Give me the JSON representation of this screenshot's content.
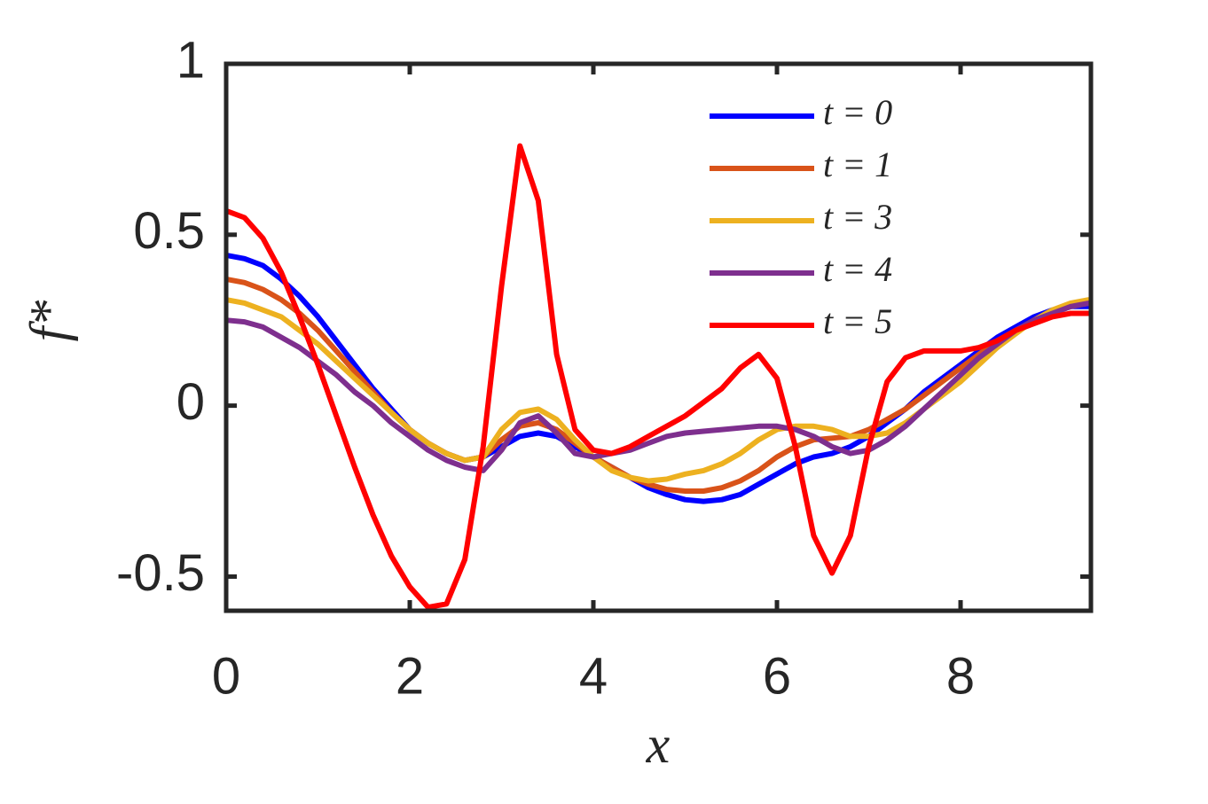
{
  "chart_data": {
    "type": "line",
    "xlabel": "x",
    "ylabel": "f*",
    "x": [
      0,
      0.2,
      0.4,
      0.6,
      0.8,
      1.0,
      1.2,
      1.4,
      1.6,
      1.8,
      2.0,
      2.2,
      2.4,
      2.6,
      2.8,
      3.0,
      3.2,
      3.4,
      3.6,
      3.8,
      4.0,
      4.2,
      4.4,
      4.6,
      4.8,
      5.0,
      5.2,
      5.4,
      5.6,
      5.8,
      6.0,
      6.2,
      6.4,
      6.6,
      6.8,
      7.0,
      7.2,
      7.4,
      7.6,
      7.8,
      8.0,
      8.2,
      8.4,
      8.6,
      8.8,
      9.0,
      9.2,
      9.4
    ],
    "series": [
      {
        "name": "t = 0",
        "color": "#0000ff",
        "values": [
          0.44,
          0.43,
          0.41,
          0.37,
          0.32,
          0.26,
          0.19,
          0.12,
          0.05,
          -0.01,
          -0.07,
          -0.11,
          -0.14,
          -0.16,
          -0.15,
          -0.12,
          -0.09,
          -0.08,
          -0.09,
          -0.12,
          -0.15,
          -0.18,
          -0.21,
          -0.24,
          -0.26,
          -0.275,
          -0.28,
          -0.275,
          -0.26,
          -0.23,
          -0.2,
          -0.17,
          -0.15,
          -0.14,
          -0.12,
          -0.09,
          -0.05,
          -0.01,
          0.04,
          0.08,
          0.12,
          0.16,
          0.2,
          0.23,
          0.26,
          0.28,
          0.29,
          0.29
        ]
      },
      {
        "name": "t = 1",
        "color": "#d95319",
        "values": [
          0.37,
          0.36,
          0.34,
          0.31,
          0.27,
          0.22,
          0.16,
          0.1,
          0.04,
          -0.02,
          -0.07,
          -0.11,
          -0.14,
          -0.16,
          -0.15,
          -0.1,
          -0.06,
          -0.05,
          -0.07,
          -0.11,
          -0.15,
          -0.18,
          -0.21,
          -0.23,
          -0.245,
          -0.25,
          -0.25,
          -0.24,
          -0.22,
          -0.19,
          -0.15,
          -0.12,
          -0.1,
          -0.095,
          -0.09,
          -0.07,
          -0.04,
          -0.01,
          0.03,
          0.07,
          0.11,
          0.15,
          0.19,
          0.22,
          0.25,
          0.27,
          0.29,
          0.3
        ]
      },
      {
        "name": "t = 3",
        "color": "#edb120",
        "values": [
          0.31,
          0.3,
          0.28,
          0.26,
          0.22,
          0.18,
          0.13,
          0.08,
          0.03,
          -0.02,
          -0.07,
          -0.11,
          -0.14,
          -0.16,
          -0.15,
          -0.07,
          -0.02,
          -0.01,
          -0.04,
          -0.1,
          -0.15,
          -0.19,
          -0.21,
          -0.22,
          -0.215,
          -0.2,
          -0.19,
          -0.17,
          -0.14,
          -0.1,
          -0.07,
          -0.06,
          -0.06,
          -0.07,
          -0.09,
          -0.09,
          -0.08,
          -0.05,
          -0.01,
          0.03,
          0.07,
          0.12,
          0.17,
          0.21,
          0.25,
          0.28,
          0.3,
          0.31
        ]
      },
      {
        "name": "t = 4",
        "color": "#7e2f8e",
        "values": [
          0.25,
          0.245,
          0.23,
          0.2,
          0.17,
          0.13,
          0.09,
          0.04,
          0.0,
          -0.05,
          -0.09,
          -0.13,
          -0.16,
          -0.18,
          -0.19,
          -0.13,
          -0.05,
          -0.03,
          -0.08,
          -0.14,
          -0.15,
          -0.14,
          -0.13,
          -0.11,
          -0.09,
          -0.08,
          -0.075,
          -0.07,
          -0.065,
          -0.06,
          -0.06,
          -0.07,
          -0.09,
          -0.12,
          -0.14,
          -0.13,
          -0.1,
          -0.06,
          -0.01,
          0.04,
          0.09,
          0.14,
          0.18,
          0.22,
          0.25,
          0.27,
          0.29,
          0.3
        ]
      },
      {
        "name": "t = 5",
        "color": "#ff0000",
        "values": [
          0.57,
          0.55,
          0.49,
          0.39,
          0.26,
          0.12,
          -0.03,
          -0.18,
          -0.32,
          -0.44,
          -0.53,
          -0.59,
          -0.58,
          -0.45,
          -0.12,
          0.35,
          0.76,
          0.6,
          0.15,
          -0.07,
          -0.13,
          -0.14,
          -0.12,
          -0.09,
          -0.06,
          -0.03,
          0.01,
          0.05,
          0.11,
          0.15,
          0.08,
          -0.12,
          -0.38,
          -0.49,
          -0.38,
          -0.12,
          0.07,
          0.14,
          0.16,
          0.16,
          0.16,
          0.17,
          0.19,
          0.22,
          0.24,
          0.26,
          0.27,
          0.27
        ]
      }
    ],
    "xlim": [
      0,
      9.42
    ],
    "ylim": [
      -0.6,
      1
    ],
    "xticks": [
      0,
      2,
      4,
      6,
      8
    ],
    "yticks": [
      -0.5,
      0,
      0.5,
      1
    ],
    "legend": "upper right"
  }
}
